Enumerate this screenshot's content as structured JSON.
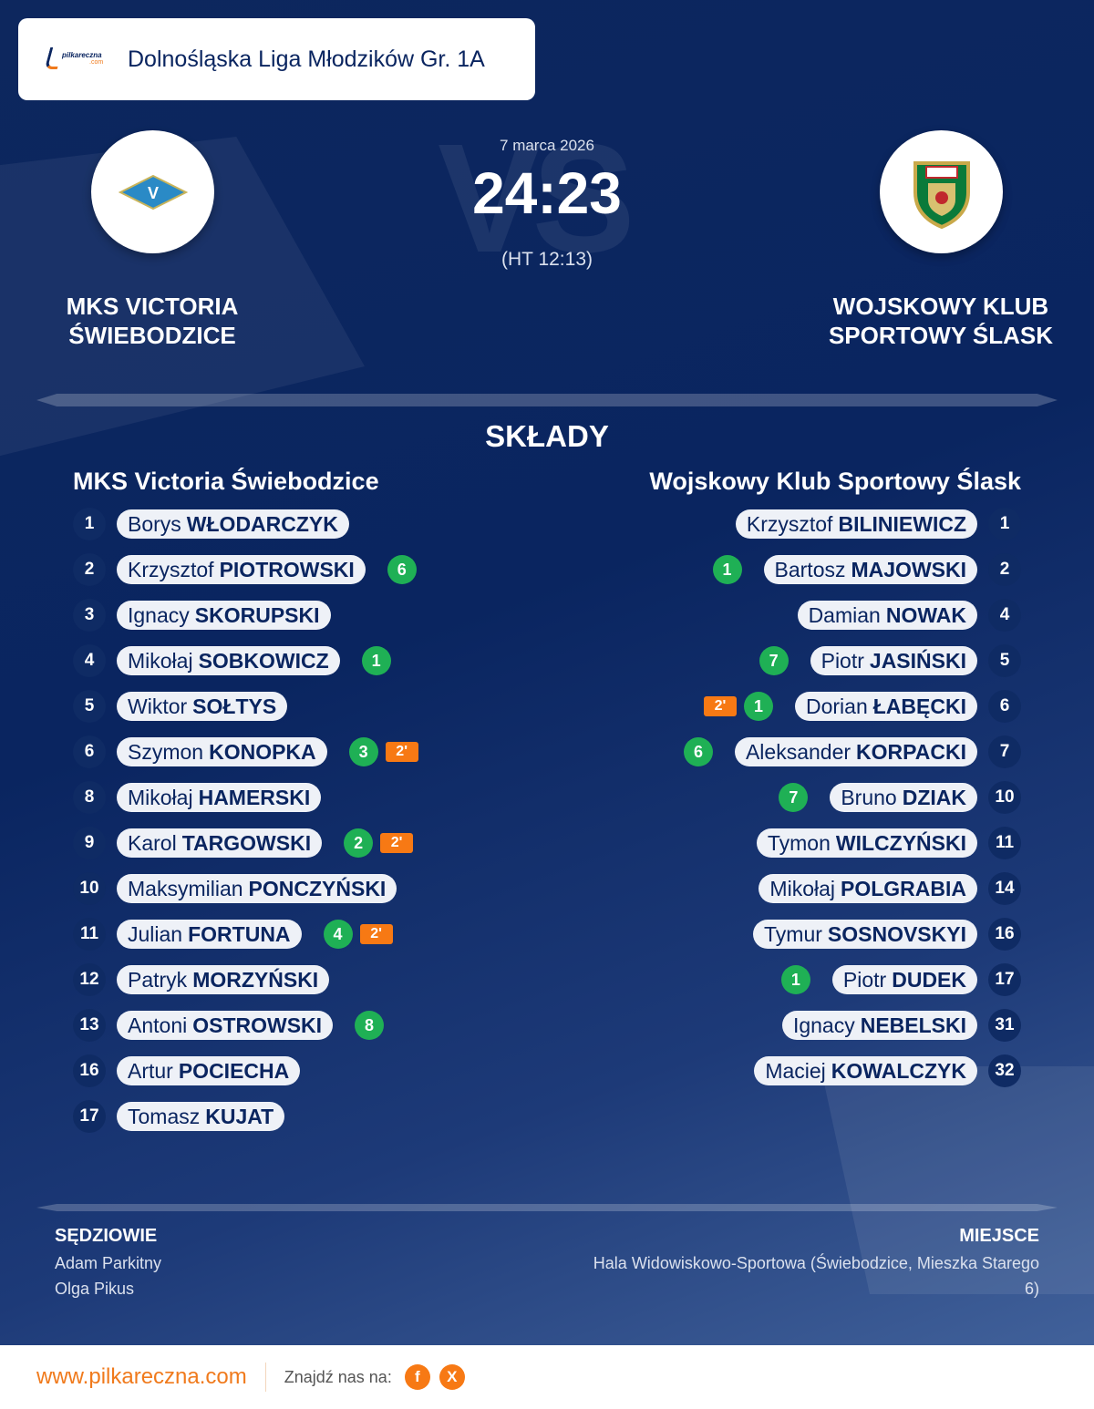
{
  "league": "Dolnośląska Liga Młodzików Gr. 1A",
  "logo_text": "pilkareczna .com",
  "match": {
    "date": "7 marca 2026",
    "score": "24:23",
    "halftime": "(HT 12:13)",
    "vs": "VS"
  },
  "home": {
    "name_line1": "MKS VICTORIA",
    "name_line2": "ŚWIEBODZICE",
    "lineup_title": "MKS Victoria  Świebodzice",
    "players": [
      {
        "n": "1",
        "first": "Borys",
        "last": "WŁODARCZYK",
        "goals": null,
        "pen": null
      },
      {
        "n": "2",
        "first": "Krzysztof",
        "last": "PIOTROWSKI",
        "goals": "6",
        "pen": null
      },
      {
        "n": "3",
        "first": "Ignacy",
        "last": "SKORUPSKI",
        "goals": null,
        "pen": null
      },
      {
        "n": "4",
        "first": "Mikołaj",
        "last": "SOBKOWICZ",
        "goals": "1",
        "pen": null
      },
      {
        "n": "5",
        "first": "Wiktor",
        "last": "SOŁTYS",
        "goals": null,
        "pen": null
      },
      {
        "n": "6",
        "first": "Szymon",
        "last": "KONOPKA",
        "goals": "3",
        "pen": "2'"
      },
      {
        "n": "8",
        "first": "Mikołaj",
        "last": "HAMERSKI",
        "goals": null,
        "pen": null
      },
      {
        "n": "9",
        "first": "Karol",
        "last": "TARGOWSKI",
        "goals": "2",
        "pen": "2'"
      },
      {
        "n": "10",
        "first": "Maksymilian",
        "last": "PONCZYŃSKI",
        "goals": null,
        "pen": null
      },
      {
        "n": "11",
        "first": "Julian",
        "last": "FORTUNA",
        "goals": "4",
        "pen": "2'"
      },
      {
        "n": "12",
        "first": "Patryk",
        "last": "MORZYŃSKI",
        "goals": null,
        "pen": null
      },
      {
        "n": "13",
        "first": "Antoni",
        "last": "OSTROWSKI",
        "goals": "8",
        "pen": null
      },
      {
        "n": "16",
        "first": "Artur",
        "last": "POCIECHA",
        "goals": null,
        "pen": null
      },
      {
        "n": "17",
        "first": "Tomasz",
        "last": "KUJAT",
        "goals": null,
        "pen": null
      }
    ]
  },
  "away": {
    "name_line1": "WOJSKOWY KLUB",
    "name_line2": "SPORTOWY ŚLASK",
    "lineup_title": "Wojskowy Klub Sportowy Ślask",
    "players": [
      {
        "n": "1",
        "first": "Krzysztof",
        "last": "BILINIEWICZ",
        "goals": null,
        "pen": null
      },
      {
        "n": "2",
        "first": "Bartosz",
        "last": "MAJOWSKI",
        "goals": "1",
        "pen": null
      },
      {
        "n": "4",
        "first": "Damian",
        "last": "NOWAK",
        "goals": null,
        "pen": null
      },
      {
        "n": "5",
        "first": "Piotr",
        "last": "JASIŃSKI",
        "goals": "7",
        "pen": null
      },
      {
        "n": "6",
        "first": "Dorian",
        "last": "ŁABĘCKI",
        "goals": "1",
        "pen": "2'"
      },
      {
        "n": "7",
        "first": "Aleksander",
        "last": "KORPACKI",
        "goals": "6",
        "pen": null
      },
      {
        "n": "10",
        "first": "Bruno",
        "last": "DZIAK",
        "goals": "7",
        "pen": null
      },
      {
        "n": "11",
        "first": "Tymon",
        "last": "WILCZYŃSKI",
        "goals": null,
        "pen": null
      },
      {
        "n": "14",
        "first": "Mikołaj",
        "last": "POLGRABIA",
        "goals": null,
        "pen": null
      },
      {
        "n": "16",
        "first": "Tymur",
        "last": "SOSNOVSKYI",
        "goals": null,
        "pen": null
      },
      {
        "n": "17",
        "first": "Piotr",
        "last": "DUDEK",
        "goals": "1",
        "pen": null
      },
      {
        "n": "31",
        "first": "Ignacy",
        "last": "NEBELSKI",
        "goals": null,
        "pen": null
      },
      {
        "n": "32",
        "first": "Maciej",
        "last": "KOWALCZYK",
        "goals": null,
        "pen": null
      }
    ]
  },
  "section_title": "SKŁADY",
  "referees": {
    "title": "SĘDZIOWIE",
    "names": [
      "Adam Parkitny",
      "Olga Pikus"
    ]
  },
  "venue": {
    "title": "MIEJSCE",
    "text": "Hala Widowiskowo-Sportowa (Świebodzice, Mieszka Starego 6)"
  },
  "footer": {
    "site": "www.pilkareczna.com",
    "find_us": "Znajdź nas na:",
    "facebook": "f",
    "x": "X"
  },
  "colors": {
    "background": "#0a2560",
    "goal": "#1fb055",
    "penalty": "#f77914",
    "accent": "#f07a1c"
  }
}
